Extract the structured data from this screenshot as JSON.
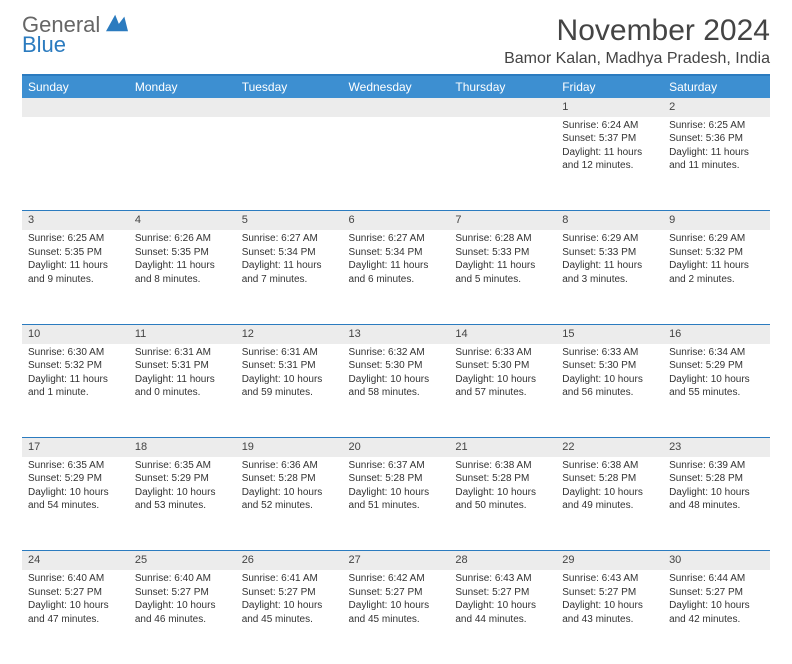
{
  "logo": {
    "text1": "General",
    "text2": "Blue"
  },
  "header": {
    "month_title": "November 2024",
    "location": "Bamor Kalan, Madhya Pradesh, India"
  },
  "colors": {
    "header_bg": "#3d8fd1",
    "rule": "#2b7bbf",
    "daynum_bg": "#ececec"
  },
  "weekdays": [
    "Sunday",
    "Monday",
    "Tuesday",
    "Wednesday",
    "Thursday",
    "Friday",
    "Saturday"
  ],
  "weeks": [
    [
      {
        "n": "",
        "sr": "",
        "ss": "",
        "dl1": "",
        "dl2": ""
      },
      {
        "n": "",
        "sr": "",
        "ss": "",
        "dl1": "",
        "dl2": ""
      },
      {
        "n": "",
        "sr": "",
        "ss": "",
        "dl1": "",
        "dl2": ""
      },
      {
        "n": "",
        "sr": "",
        "ss": "",
        "dl1": "",
        "dl2": ""
      },
      {
        "n": "",
        "sr": "",
        "ss": "",
        "dl1": "",
        "dl2": ""
      },
      {
        "n": "1",
        "sr": "Sunrise: 6:24 AM",
        "ss": "Sunset: 5:37 PM",
        "dl1": "Daylight: 11 hours",
        "dl2": "and 12 minutes."
      },
      {
        "n": "2",
        "sr": "Sunrise: 6:25 AM",
        "ss": "Sunset: 5:36 PM",
        "dl1": "Daylight: 11 hours",
        "dl2": "and 11 minutes."
      }
    ],
    [
      {
        "n": "3",
        "sr": "Sunrise: 6:25 AM",
        "ss": "Sunset: 5:35 PM",
        "dl1": "Daylight: 11 hours",
        "dl2": "and 9 minutes."
      },
      {
        "n": "4",
        "sr": "Sunrise: 6:26 AM",
        "ss": "Sunset: 5:35 PM",
        "dl1": "Daylight: 11 hours",
        "dl2": "and 8 minutes."
      },
      {
        "n": "5",
        "sr": "Sunrise: 6:27 AM",
        "ss": "Sunset: 5:34 PM",
        "dl1": "Daylight: 11 hours",
        "dl2": "and 7 minutes."
      },
      {
        "n": "6",
        "sr": "Sunrise: 6:27 AM",
        "ss": "Sunset: 5:34 PM",
        "dl1": "Daylight: 11 hours",
        "dl2": "and 6 minutes."
      },
      {
        "n": "7",
        "sr": "Sunrise: 6:28 AM",
        "ss": "Sunset: 5:33 PM",
        "dl1": "Daylight: 11 hours",
        "dl2": "and 5 minutes."
      },
      {
        "n": "8",
        "sr": "Sunrise: 6:29 AM",
        "ss": "Sunset: 5:33 PM",
        "dl1": "Daylight: 11 hours",
        "dl2": "and 3 minutes."
      },
      {
        "n": "9",
        "sr": "Sunrise: 6:29 AM",
        "ss": "Sunset: 5:32 PM",
        "dl1": "Daylight: 11 hours",
        "dl2": "and 2 minutes."
      }
    ],
    [
      {
        "n": "10",
        "sr": "Sunrise: 6:30 AM",
        "ss": "Sunset: 5:32 PM",
        "dl1": "Daylight: 11 hours",
        "dl2": "and 1 minute."
      },
      {
        "n": "11",
        "sr": "Sunrise: 6:31 AM",
        "ss": "Sunset: 5:31 PM",
        "dl1": "Daylight: 11 hours",
        "dl2": "and 0 minutes."
      },
      {
        "n": "12",
        "sr": "Sunrise: 6:31 AM",
        "ss": "Sunset: 5:31 PM",
        "dl1": "Daylight: 10 hours",
        "dl2": "and 59 minutes."
      },
      {
        "n": "13",
        "sr": "Sunrise: 6:32 AM",
        "ss": "Sunset: 5:30 PM",
        "dl1": "Daylight: 10 hours",
        "dl2": "and 58 minutes."
      },
      {
        "n": "14",
        "sr": "Sunrise: 6:33 AM",
        "ss": "Sunset: 5:30 PM",
        "dl1": "Daylight: 10 hours",
        "dl2": "and 57 minutes."
      },
      {
        "n": "15",
        "sr": "Sunrise: 6:33 AM",
        "ss": "Sunset: 5:30 PM",
        "dl1": "Daylight: 10 hours",
        "dl2": "and 56 minutes."
      },
      {
        "n": "16",
        "sr": "Sunrise: 6:34 AM",
        "ss": "Sunset: 5:29 PM",
        "dl1": "Daylight: 10 hours",
        "dl2": "and 55 minutes."
      }
    ],
    [
      {
        "n": "17",
        "sr": "Sunrise: 6:35 AM",
        "ss": "Sunset: 5:29 PM",
        "dl1": "Daylight: 10 hours",
        "dl2": "and 54 minutes."
      },
      {
        "n": "18",
        "sr": "Sunrise: 6:35 AM",
        "ss": "Sunset: 5:29 PM",
        "dl1": "Daylight: 10 hours",
        "dl2": "and 53 minutes."
      },
      {
        "n": "19",
        "sr": "Sunrise: 6:36 AM",
        "ss": "Sunset: 5:28 PM",
        "dl1": "Daylight: 10 hours",
        "dl2": "and 52 minutes."
      },
      {
        "n": "20",
        "sr": "Sunrise: 6:37 AM",
        "ss": "Sunset: 5:28 PM",
        "dl1": "Daylight: 10 hours",
        "dl2": "and 51 minutes."
      },
      {
        "n": "21",
        "sr": "Sunrise: 6:38 AM",
        "ss": "Sunset: 5:28 PM",
        "dl1": "Daylight: 10 hours",
        "dl2": "and 50 minutes."
      },
      {
        "n": "22",
        "sr": "Sunrise: 6:38 AM",
        "ss": "Sunset: 5:28 PM",
        "dl1": "Daylight: 10 hours",
        "dl2": "and 49 minutes."
      },
      {
        "n": "23",
        "sr": "Sunrise: 6:39 AM",
        "ss": "Sunset: 5:28 PM",
        "dl1": "Daylight: 10 hours",
        "dl2": "and 48 minutes."
      }
    ],
    [
      {
        "n": "24",
        "sr": "Sunrise: 6:40 AM",
        "ss": "Sunset: 5:27 PM",
        "dl1": "Daylight: 10 hours",
        "dl2": "and 47 minutes."
      },
      {
        "n": "25",
        "sr": "Sunrise: 6:40 AM",
        "ss": "Sunset: 5:27 PM",
        "dl1": "Daylight: 10 hours",
        "dl2": "and 46 minutes."
      },
      {
        "n": "26",
        "sr": "Sunrise: 6:41 AM",
        "ss": "Sunset: 5:27 PM",
        "dl1": "Daylight: 10 hours",
        "dl2": "and 45 minutes."
      },
      {
        "n": "27",
        "sr": "Sunrise: 6:42 AM",
        "ss": "Sunset: 5:27 PM",
        "dl1": "Daylight: 10 hours",
        "dl2": "and 45 minutes."
      },
      {
        "n": "28",
        "sr": "Sunrise: 6:43 AM",
        "ss": "Sunset: 5:27 PM",
        "dl1": "Daylight: 10 hours",
        "dl2": "and 44 minutes."
      },
      {
        "n": "29",
        "sr": "Sunrise: 6:43 AM",
        "ss": "Sunset: 5:27 PM",
        "dl1": "Daylight: 10 hours",
        "dl2": "and 43 minutes."
      },
      {
        "n": "30",
        "sr": "Sunrise: 6:44 AM",
        "ss": "Sunset: 5:27 PM",
        "dl1": "Daylight: 10 hours",
        "dl2": "and 42 minutes."
      }
    ]
  ]
}
